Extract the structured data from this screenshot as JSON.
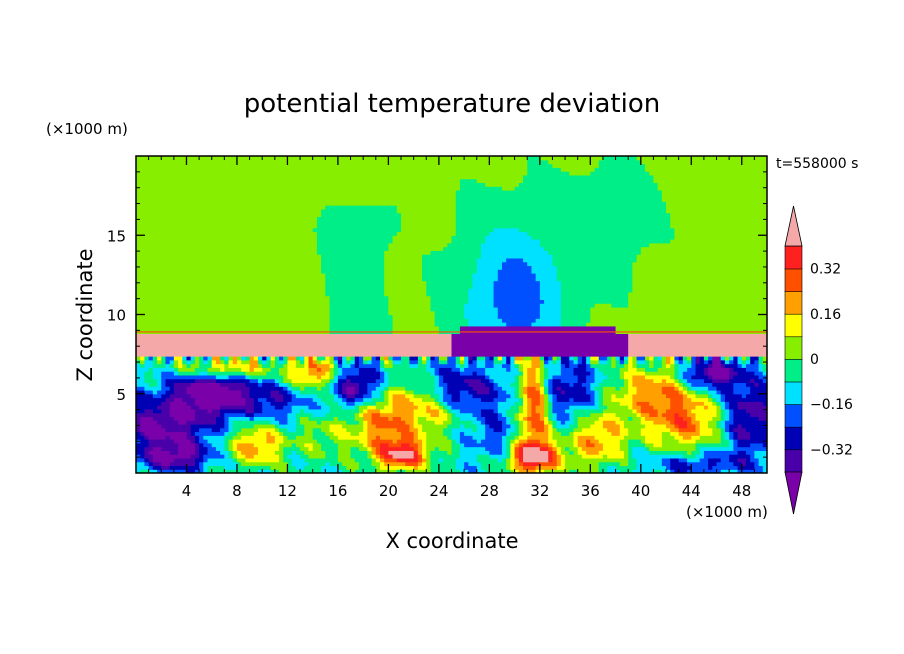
{
  "chart_data": {
    "type": "heatmap",
    "title": "potential temperature deviation",
    "xlabel": "X coordinate",
    "ylabel": "Z coordinate",
    "x_unit": "(×1000 m)",
    "y_unit": "(×1000 m)",
    "time_label": "t=558000 s",
    "xlim": [
      0,
      50
    ],
    "ylim": [
      0,
      20
    ],
    "x_ticks": [
      4,
      8,
      12,
      16,
      20,
      24,
      28,
      32,
      36,
      40,
      44,
      48
    ],
    "y_ticks": [
      5,
      10,
      15
    ],
    "colorbar": {
      "levels": [
        -0.4,
        -0.32,
        -0.24,
        -0.16,
        -0.08,
        0,
        0.08,
        0.16,
        0.24,
        0.32,
        0.4
      ],
      "labels": [
        "0.32",
        "0.16",
        "0",
        "−0.16",
        "−0.32"
      ],
      "label_values": [
        0.32,
        0.16,
        0,
        -0.16,
        -0.32
      ],
      "colors": [
        "#7a00aa",
        "#4a00a8",
        "#0000b4",
        "#0050ff",
        "#00e0ff",
        "#00ee88",
        "#88ee00",
        "#ffff00",
        "#ffa000",
        "#ff5000",
        "#ff2020",
        "#f4a8a8"
      ],
      "extend": "both"
    },
    "regions": [
      {
        "name": "upper troposphere",
        "level": 0.02,
        "x": [
          0,
          50
        ],
        "z": [
          9,
          20
        ]
      },
      {
        "name": "pink layer",
        "level": 0.45,
        "x": [
          0,
          50
        ],
        "z": [
          7.4,
          8.9
        ]
      },
      {
        "name": "purple block",
        "level": -0.45,
        "x": [
          25,
          39
        ],
        "z": [
          7.4,
          9.2
        ]
      },
      {
        "name": "cyan plume",
        "level": -0.14,
        "x": [
          27,
          34
        ],
        "z": [
          9,
          16
        ]
      },
      {
        "name": "turbulent lower layer",
        "level": -0.1,
        "x": [
          0,
          50
        ],
        "z": [
          0,
          7.4
        ]
      }
    ]
  }
}
